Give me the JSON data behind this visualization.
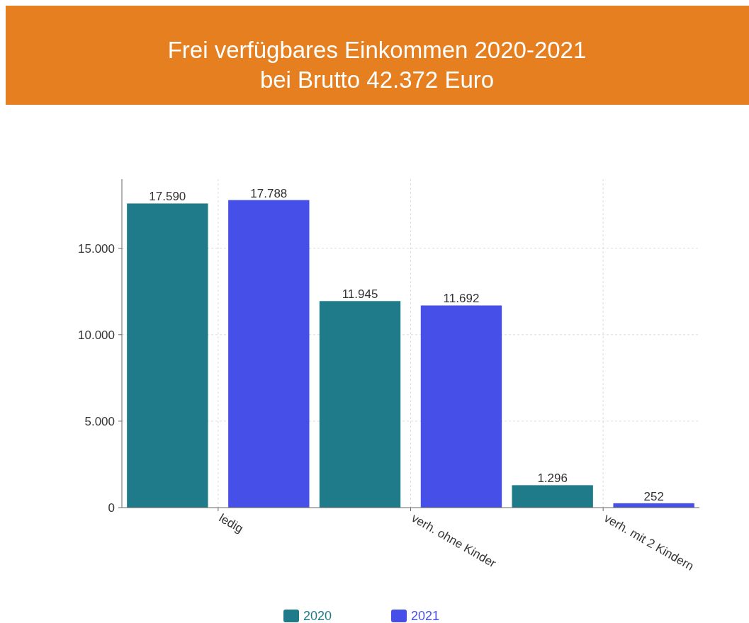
{
  "chart_data": {
    "type": "bar",
    "title": "Frei verfügbares Einkommen 2020-2021",
    "subtitle": "bei Brutto 42.372 Euro",
    "categories": [
      "ledig",
      "verh. ohne Kinder",
      "verh. mit 2 Kindern"
    ],
    "series": [
      {
        "name": "2020",
        "color": "#1f7b8a",
        "values": [
          17590,
          11945,
          1296
        ],
        "value_labels": [
          "17.590",
          "11.945",
          "1.296"
        ]
      },
      {
        "name": "2021",
        "color": "#4650e8",
        "values": [
          17788,
          11692,
          252
        ],
        "value_labels": [
          "17.788",
          "11.692",
          "252"
        ]
      }
    ],
    "ylim": [
      0,
      19000
    ],
    "yticks": [
      {
        "value": 0,
        "label": "0"
      },
      {
        "value": 5000,
        "label": "5.000"
      },
      {
        "value": 10000,
        "label": "10.000"
      },
      {
        "value": 15000,
        "label": "15.000"
      }
    ],
    "grid": true,
    "legend": "bottom"
  }
}
